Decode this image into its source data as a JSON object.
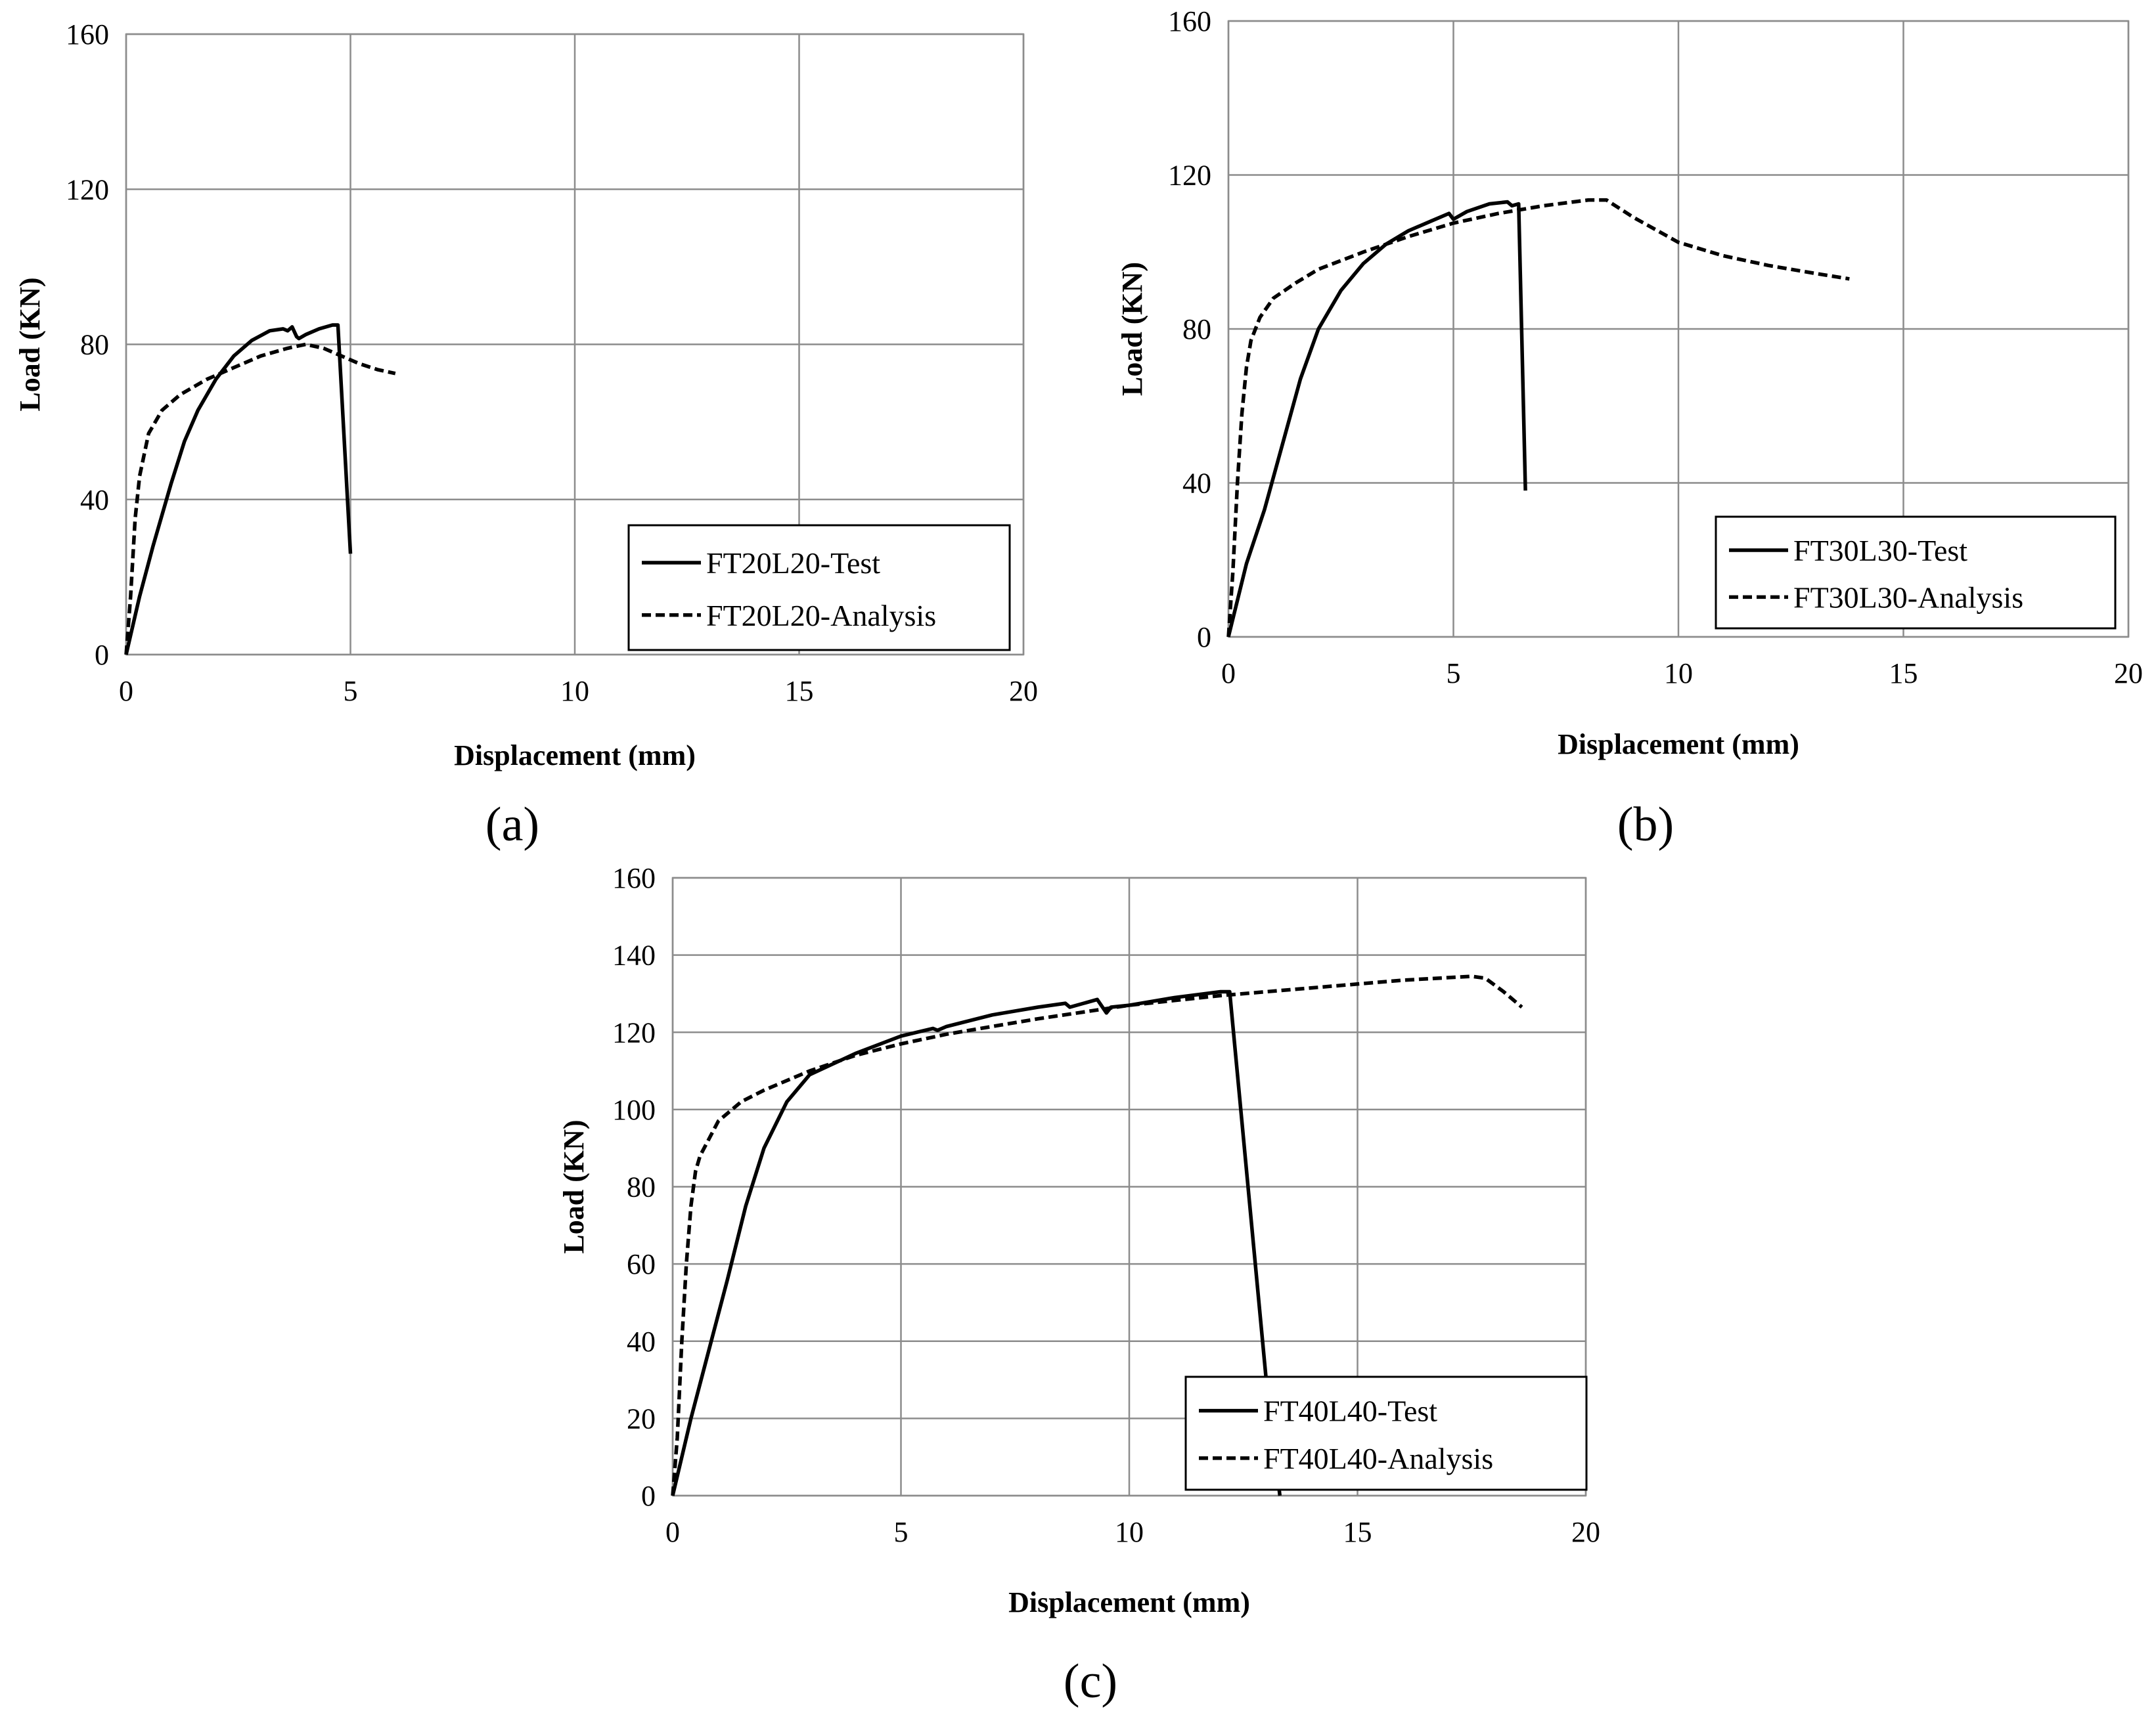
{
  "figure": {
    "panels": [
      "a",
      "b",
      "c"
    ]
  },
  "chart_data": [
    {
      "id": "a",
      "type": "line",
      "panel_label": "(a)",
      "xlabel": "Displacement (mm)",
      "ylabel": "Load (KN)",
      "xlim": [
        0,
        20
      ],
      "ylim": [
        0,
        160
      ],
      "xticks": [
        0,
        5,
        10,
        15,
        20
      ],
      "yticks": [
        0,
        40,
        80,
        120,
        160
      ],
      "grid": true,
      "legend_position": "bottom-right",
      "series": [
        {
          "name": "FT20L20-Test",
          "style": "solid",
          "x": [
            0,
            0.3,
            0.6,
            1.0,
            1.3,
            1.6,
            2.0,
            2.4,
            2.8,
            3.2,
            3.5,
            3.6,
            3.7,
            3.8,
            3.85,
            4.0,
            4.3,
            4.6,
            4.72,
            5.0
          ],
          "y": [
            0,
            15,
            28,
            44,
            55,
            63,
            71,
            77,
            81,
            83.5,
            84,
            83.5,
            84.5,
            82,
            81.5,
            82.5,
            84,
            85,
            85,
            26
          ]
        },
        {
          "name": "FT20L20-Analysis",
          "style": "dashed",
          "x": [
            0,
            0.1,
            0.2,
            0.3,
            0.5,
            0.8,
            1.2,
            1.8,
            2.4,
            3.0,
            3.6,
            4.0,
            4.4,
            4.8,
            5.2,
            5.6,
            6.0
          ],
          "y": [
            0,
            15,
            35,
            46,
            57,
            63,
            67,
            71,
            74,
            77,
            79,
            80,
            79,
            77,
            75,
            73.5,
            72.5
          ]
        }
      ]
    },
    {
      "id": "b",
      "type": "line",
      "panel_label": "(b)",
      "xlabel": "Displacement (mm)",
      "ylabel": "Load (KN)",
      "xlim": [
        0,
        20
      ],
      "ylim": [
        0,
        160
      ],
      "xticks": [
        0,
        5,
        10,
        15,
        20
      ],
      "yticks": [
        0,
        40,
        80,
        120,
        160
      ],
      "grid": true,
      "legend_position": "bottom-right",
      "series": [
        {
          "name": "FT30L30-Test",
          "style": "solid",
          "x": [
            0,
            0.4,
            0.8,
            1.2,
            1.6,
            2.0,
            2.5,
            3.0,
            3.5,
            4.0,
            4.5,
            4.9,
            5.0,
            5.3,
            5.8,
            6.2,
            6.3,
            6.45,
            6.6
          ],
          "y": [
            0,
            19,
            33,
            50,
            67,
            80,
            90,
            97,
            102,
            105.5,
            108,
            110,
            108.5,
            110.5,
            112.5,
            113,
            112,
            112.5,
            38
          ]
        },
        {
          "name": "FT30L30-Analysis",
          "style": "dashed",
          "x": [
            0,
            0.1,
            0.2,
            0.3,
            0.4,
            0.5,
            0.7,
            1.0,
            1.5,
            2.0,
            3.0,
            4.0,
            5.0,
            6.0,
            7.0,
            8.0,
            8.4,
            9.0,
            10.0,
            11.0,
            12.0,
            13.0,
            13.8
          ],
          "y": [
            0,
            17,
            40,
            58,
            70,
            77,
            83,
            88,
            92,
            95.5,
            100,
            104,
            107.5,
            110,
            112,
            113.5,
            113.5,
            109,
            102.5,
            99,
            96.5,
            94.5,
            93
          ]
        }
      ]
    },
    {
      "id": "c",
      "type": "line",
      "panel_label": "(c)",
      "xlabel": "Displacement (mm)",
      "ylabel": "Load (KN)",
      "xlim": [
        0,
        20
      ],
      "ylim": [
        0,
        160
      ],
      "xticks": [
        0,
        5,
        10,
        15,
        20
      ],
      "yticks": [
        0,
        20,
        40,
        60,
        80,
        100,
        120,
        140,
        160
      ],
      "grid": true,
      "legend_position": "bottom-right",
      "series": [
        {
          "name": "FT40L40-Test",
          "style": "solid",
          "x": [
            0,
            0.4,
            0.8,
            1.2,
            1.6,
            2.0,
            2.5,
            3.0,
            4.0,
            5.0,
            5.7,
            5.8,
            6.0,
            7.0,
            8.0,
            8.6,
            8.7,
            9.3,
            9.5,
            9.6,
            10.0,
            11.0,
            12.0,
            12.2,
            13.0,
            13.3
          ],
          "y": [
            0,
            20,
            38,
            56,
            75,
            90,
            102,
            109,
            114.5,
            119,
            121,
            120.5,
            121.5,
            124.5,
            126.5,
            127.5,
            126.5,
            128.5,
            125,
            126.5,
            127,
            129,
            130.5,
            130.5,
            30,
            0
          ]
        },
        {
          "name": "FT40L40-Analysis",
          "style": "dashed",
          "x": [
            0,
            0.1,
            0.2,
            0.3,
            0.4,
            0.5,
            0.6,
            0.8,
            1.0,
            1.5,
            2.0,
            3.0,
            4.0,
            5.0,
            6.0,
            7.0,
            8.0,
            10.0,
            12.0,
            14.0,
            16.0,
            17.5,
            17.8,
            18.2,
            18.6
          ],
          "y": [
            0,
            15,
            40,
            60,
            75,
            84,
            88,
            92.5,
            97,
            102,
            105,
            110,
            114,
            117,
            119.5,
            121.5,
            123.5,
            127,
            129.5,
            131.5,
            133.5,
            134.5,
            134,
            130.5,
            126.5
          ]
        }
      ]
    }
  ]
}
